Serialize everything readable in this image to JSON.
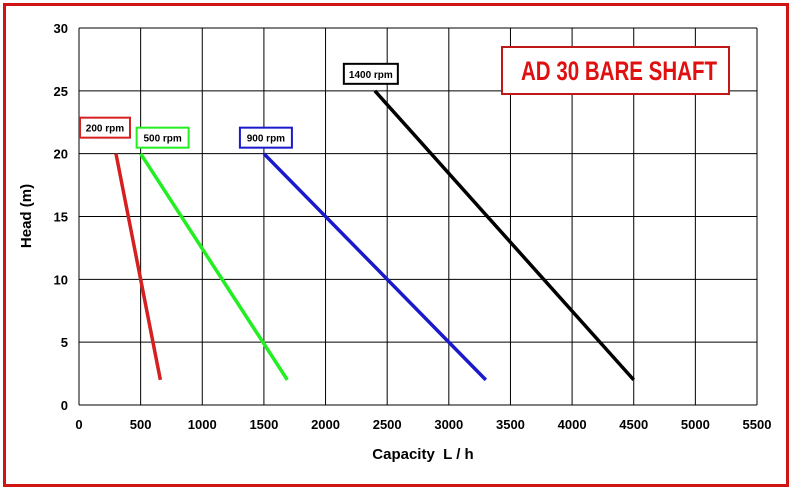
{
  "chart_data": {
    "type": "line",
    "title": "AD 30 BARE SHAFT",
    "xlabel": "Capacity  L / h",
    "ylabel": "Head (m)",
    "xlim": [
      0,
      5500
    ],
    "ylim": [
      0,
      30
    ],
    "xticks": [
      "0",
      "500",
      "1000",
      "1500",
      "2000",
      "2500",
      "3000",
      "3500",
      "4000",
      "4500",
      "5000",
      "5500"
    ],
    "yticks": [
      "0",
      "5",
      "10",
      "15",
      "20",
      "25",
      "30"
    ],
    "grid": true,
    "legend": "inline labels",
    "series": [
      {
        "name": "200 rpm",
        "color": "#d42020",
        "x": [
          300,
          660
        ],
        "y": [
          20,
          2
        ]
      },
      {
        "name": "500 rpm",
        "color": "#22ee22",
        "x": [
          500,
          1690
        ],
        "y": [
          20,
          2
        ]
      },
      {
        "name": "900 rpm",
        "color": "#1a1acc",
        "x": [
          1500,
          3300
        ],
        "y": [
          20,
          2
        ]
      },
      {
        "name": "1400 rpm",
        "color": "#000000",
        "x": [
          2400,
          4500
        ],
        "y": [
          25,
          2
        ]
      }
    ]
  },
  "colors": {
    "frame": "#d01414",
    "grid": "#000000",
    "title_border": "#c01818",
    "title_text": "#e01010"
  }
}
